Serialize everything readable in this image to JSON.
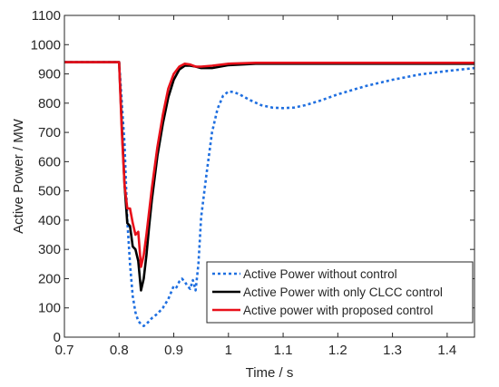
{
  "chart_data": {
    "type": "line",
    "xlabel": "Time / s",
    "ylabel": "Active Power / MW",
    "xlim": [
      0.7,
      1.45
    ],
    "ylim": [
      0,
      1100
    ],
    "xticks": [
      0.7,
      0.8,
      0.9,
      1.0,
      1.1,
      1.2,
      1.3,
      1.4
    ],
    "xtick_labels": [
      "0.7",
      "0.8",
      "0.9",
      "1",
      "1.1",
      "1.2",
      "1.3",
      "1.4"
    ],
    "yticks": [
      0,
      100,
      200,
      300,
      400,
      500,
      600,
      700,
      800,
      900,
      1000,
      1100
    ],
    "ytick_labels": [
      "0",
      "100",
      "200",
      "300",
      "400",
      "500",
      "600",
      "700",
      "800",
      "900",
      "1000",
      "1100"
    ],
    "grid": false,
    "legend_position": "bottom-right",
    "series": [
      {
        "name": "Active Power without control",
        "color": "#1f6fe0",
        "style": "dotted",
        "x": [
          0.7,
          0.8,
          0.81,
          0.815,
          0.82,
          0.825,
          0.83,
          0.835,
          0.84,
          0.845,
          0.85,
          0.86,
          0.87,
          0.88,
          0.89,
          0.9,
          0.905,
          0.91,
          0.915,
          0.92,
          0.925,
          0.93,
          0.935,
          0.94,
          0.945,
          0.95,
          0.96,
          0.97,
          0.98,
          0.99,
          1.0,
          1.01,
          1.02,
          1.04,
          1.06,
          1.08,
          1.1,
          1.12,
          1.14,
          1.17,
          1.2,
          1.25,
          1.3,
          1.35,
          1.4,
          1.45
        ],
        "y": [
          940,
          940,
          660,
          400,
          250,
          140,
          85,
          55,
          45,
          38,
          45,
          65,
          80,
          100,
          130,
          175,
          170,
          190,
          200,
          190,
          175,
          165,
          195,
          160,
          250,
          410,
          560,
          700,
          780,
          825,
          840,
          838,
          830,
          810,
          793,
          785,
          783,
          785,
          793,
          810,
          830,
          858,
          880,
          898,
          910,
          920
        ]
      },
      {
        "name": "Active Power with only CLCC control",
        "color": "#000000",
        "style": "solid",
        "x": [
          0.7,
          0.8,
          0.805,
          0.81,
          0.815,
          0.82,
          0.825,
          0.83,
          0.835,
          0.84,
          0.845,
          0.85,
          0.855,
          0.86,
          0.87,
          0.88,
          0.89,
          0.9,
          0.91,
          0.92,
          0.93,
          0.94,
          0.95,
          0.97,
          1.0,
          1.05,
          1.1,
          1.2,
          1.3,
          1.45
        ],
        "y": [
          940,
          940,
          720,
          520,
          390,
          380,
          310,
          300,
          260,
          160,
          200,
          280,
          380,
          470,
          620,
          730,
          820,
          880,
          915,
          928,
          928,
          925,
          920,
          920,
          930,
          935,
          935,
          935,
          935,
          935
        ]
      },
      {
        "name": "Active power with proposed control",
        "color": "#e8101a",
        "style": "solid",
        "x": [
          0.7,
          0.8,
          0.805,
          0.81,
          0.815,
          0.82,
          0.825,
          0.83,
          0.835,
          0.84,
          0.845,
          0.85,
          0.855,
          0.86,
          0.87,
          0.88,
          0.89,
          0.9,
          0.91,
          0.92,
          0.93,
          0.94,
          0.95,
          0.97,
          1.0,
          1.05,
          1.1,
          1.2,
          1.3,
          1.45
        ],
        "y": [
          940,
          940,
          700,
          520,
          440,
          440,
          390,
          350,
          360,
          240,
          280,
          350,
          430,
          510,
          650,
          760,
          850,
          900,
          925,
          935,
          932,
          925,
          925,
          928,
          935,
          938,
          938,
          938,
          938,
          938
        ]
      }
    ]
  }
}
